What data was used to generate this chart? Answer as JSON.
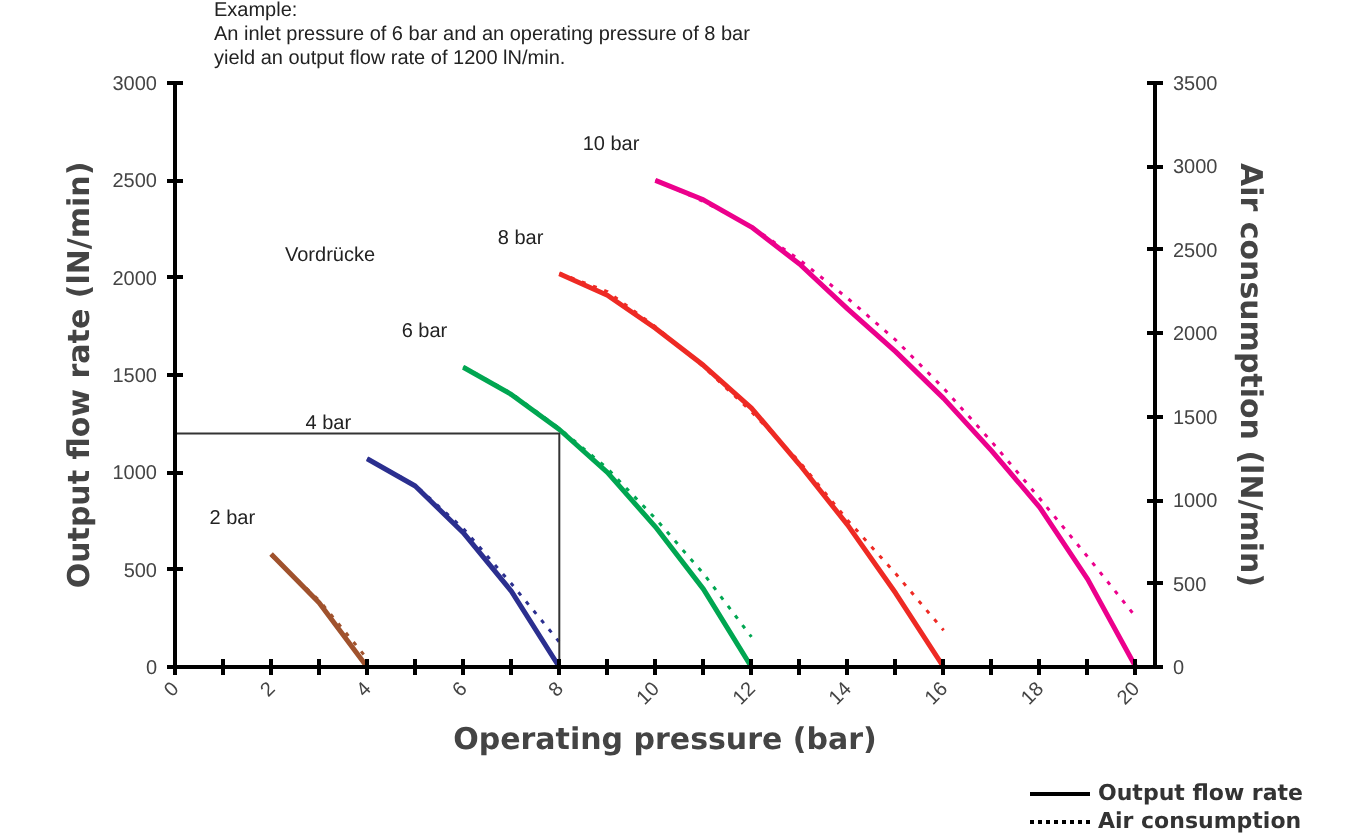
{
  "chart_data": {
    "type": "line",
    "xlabel": "Operating pressure (bar)",
    "ylabel": "Output flow rate (lN/min)",
    "y2label": "Air consumption (lN/min)",
    "xlim": [
      0,
      20.4
    ],
    "ylim": [
      0,
      3000
    ],
    "y2lim": [
      0,
      3500
    ],
    "xticks": [
      0,
      {
        "value": 1,
        "label": null
      },
      2,
      {
        "value": 3,
        "label": null
      },
      4,
      {
        "value": 5,
        "label": null
      },
      6,
      {
        "value": 7,
        "label": null
      },
      8,
      {
        "value": 9,
        "label": null
      },
      10,
      {
        "value": 11,
        "label": null
      },
      12,
      {
        "value": 13,
        "label": null
      },
      14,
      {
        "value": 15,
        "label": null
      },
      16,
      {
        "value": 17,
        "label": null
      },
      18,
      {
        "value": 19,
        "label": null
      },
      20
    ],
    "yticks": [
      0,
      500,
      1000,
      1500,
      2000,
      2500,
      3000
    ],
    "y2ticks": [
      0,
      500,
      1000,
      1500,
      2000,
      2500,
      3000,
      3500
    ],
    "grid": false,
    "annotations": [
      "Example:\nAn inlet pressure of 6 bar and an operating pressure of 8 bar\nyield an output flow rate of 1200 lN/min.",
      "Vordrücke",
      "Output flow rate",
      "Air consumption"
    ],
    "series": [
      {
        "name": "2 bar",
        "color": "#a0522d",
        "line_style": "solid",
        "x": [
          2,
          3,
          4
        ],
        "values": [
          580,
          330,
          0
        ]
      },
      {
        "color": "#a0522d",
        "line_style": "dotted",
        "axis": "y2",
        "x": [
          2,
          3,
          4
        ],
        "values": [
          670,
          400,
          50
        ]
      },
      {
        "name": "4 bar",
        "color": "#2b2f8f",
        "line_style": "solid",
        "x": [
          4,
          5,
          6,
          7,
          8
        ],
        "values": [
          1070,
          930,
          690,
          390,
          0
        ]
      },
      {
        "color": "#2b2f8f",
        "line_style": "dotted",
        "axis": "y2",
        "x": [
          4,
          5,
          6,
          7,
          8
        ],
        "values": [
          1250,
          1090,
          830,
          500,
          150
        ]
      },
      {
        "name": "6 bar",
        "color": "#00a651",
        "line_style": "solid",
        "x": [
          6,
          7,
          8,
          9,
          10,
          11,
          12
        ],
        "values": [
          1540,
          1400,
          1220,
          1000,
          720,
          400,
          0
        ]
      },
      {
        "color": "#00a651",
        "line_style": "dotted",
        "axis": "y2",
        "x": [
          6,
          7,
          8,
          9,
          10,
          11,
          12
        ],
        "values": [
          1800,
          1640,
          1430,
          1190,
          890,
          560,
          180
        ]
      },
      {
        "name": "8 bar",
        "color": "#ee2a24",
        "line_style": "solid",
        "x": [
          8,
          9,
          10,
          11,
          12,
          13,
          14,
          15,
          16
        ],
        "values": [
          2020,
          1910,
          1740,
          1550,
          1330,
          1040,
          730,
          380,
          0
        ]
      },
      {
        "color": "#ee2a24",
        "line_style": "dotted",
        "axis": "y2",
        "x": [
          8,
          9,
          10,
          11,
          12,
          13,
          14,
          15,
          16
        ],
        "values": [
          2360,
          2250,
          2040,
          1800,
          1530,
          1230,
          880,
          560,
          220
        ]
      },
      {
        "name": "10 bar",
        "color": "#ec008c",
        "line_style": "solid",
        "x": [
          10,
          11,
          12,
          13,
          14,
          15,
          16,
          17,
          18,
          19,
          20
        ],
        "values": [
          2500,
          2400,
          2260,
          2070,
          1840,
          1620,
          1380,
          1110,
          820,
          450,
          0
        ]
      },
      {
        "color": "#ec008c",
        "line_style": "dotted",
        "axis": "y2",
        "x": [
          10,
          11,
          12,
          13,
          14,
          15,
          16,
          17,
          18,
          19,
          20
        ],
        "values": [
          2920,
          2790,
          2640,
          2440,
          2210,
          1960,
          1670,
          1350,
          1010,
          660,
          300
        ]
      },
      {
        "color": "#333333",
        "line_style": "solid",
        "x": [
          0,
          8,
          8
        ],
        "values": [
          1200,
          1200,
          0
        ]
      }
    ]
  }
}
